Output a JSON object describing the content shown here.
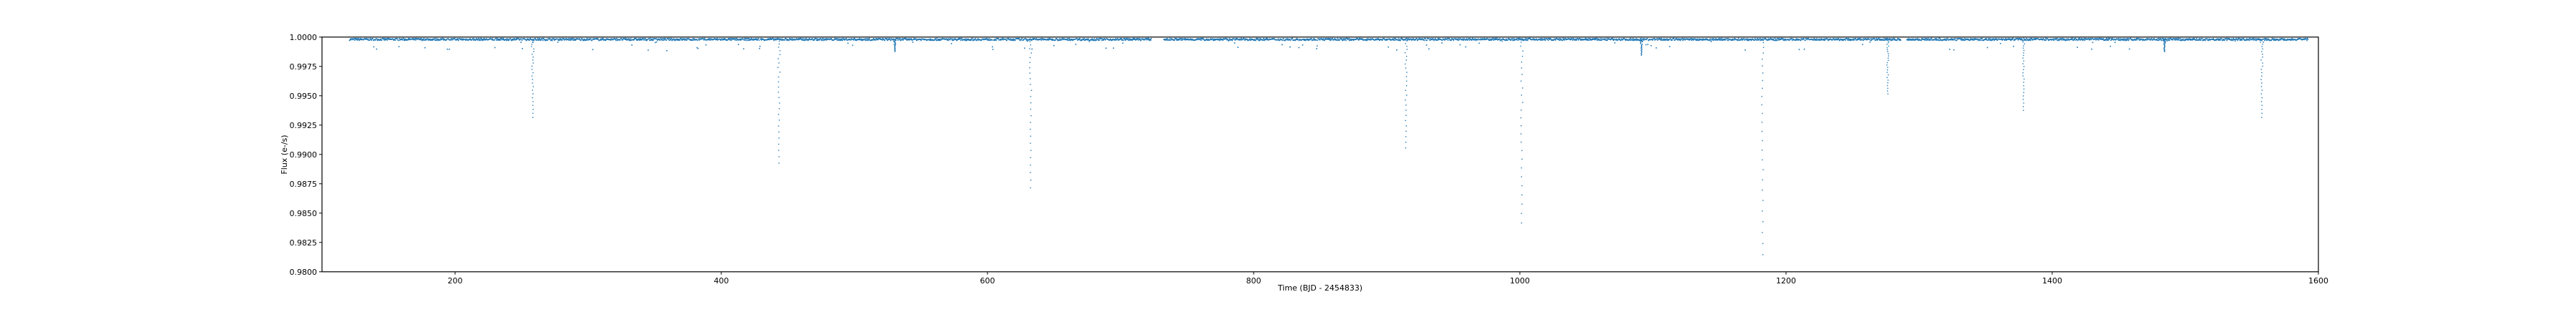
{
  "chart_data": {
    "type": "scatter",
    "title": "",
    "xlabel": "Time (BJD - 2454833)",
    "ylabel": "Flux (e-/s)",
    "xlim": [
      100,
      1600
    ],
    "ylim": [
      0.98,
      1.0
    ],
    "xticks": [
      200,
      400,
      600,
      800,
      1000,
      1200,
      1400,
      1600
    ],
    "xtick_labels": [
      "200",
      "400",
      "600",
      "800",
      "1000",
      "1200",
      "1400",
      "1600"
    ],
    "yticks": [
      0.98,
      0.9825,
      0.985,
      0.9875,
      0.99,
      0.9925,
      0.995,
      0.9975,
      1.0
    ],
    "ytick_labels": [
      "0.9800",
      "0.9825",
      "0.9850",
      "0.9875",
      "0.9900",
      "0.9925",
      "0.9950",
      "0.9975",
      "1.0000"
    ],
    "grid": false,
    "legend": "none",
    "point_color": "#1f77b4",
    "baseline_flux": 0.99985,
    "observed_time_ranges": [
      [
        120,
        723
      ],
      [
        732,
        1286
      ],
      [
        1290,
        1592
      ]
    ],
    "dips": [
      {
        "t": 258,
        "flux": 0.9932
      },
      {
        "t": 443,
        "flux": 0.9893
      },
      {
        "t": 632,
        "flux": 0.9872
      },
      {
        "t": 914,
        "flux": 0.9906
      },
      {
        "t": 1001,
        "flux": 0.9842
      },
      {
        "t": 1091,
        "flux": 0.9985
      },
      {
        "t": 1182,
        "flux": 0.9815
      },
      {
        "t": 1276,
        "flux": 0.9952
      },
      {
        "t": 1378,
        "flux": 0.9938
      },
      {
        "t": 1557,
        "flux": 0.9932
      },
      {
        "t": 1484,
        "flux": 0.9988
      },
      {
        "t": 530,
        "flux": 0.9988
      }
    ]
  }
}
